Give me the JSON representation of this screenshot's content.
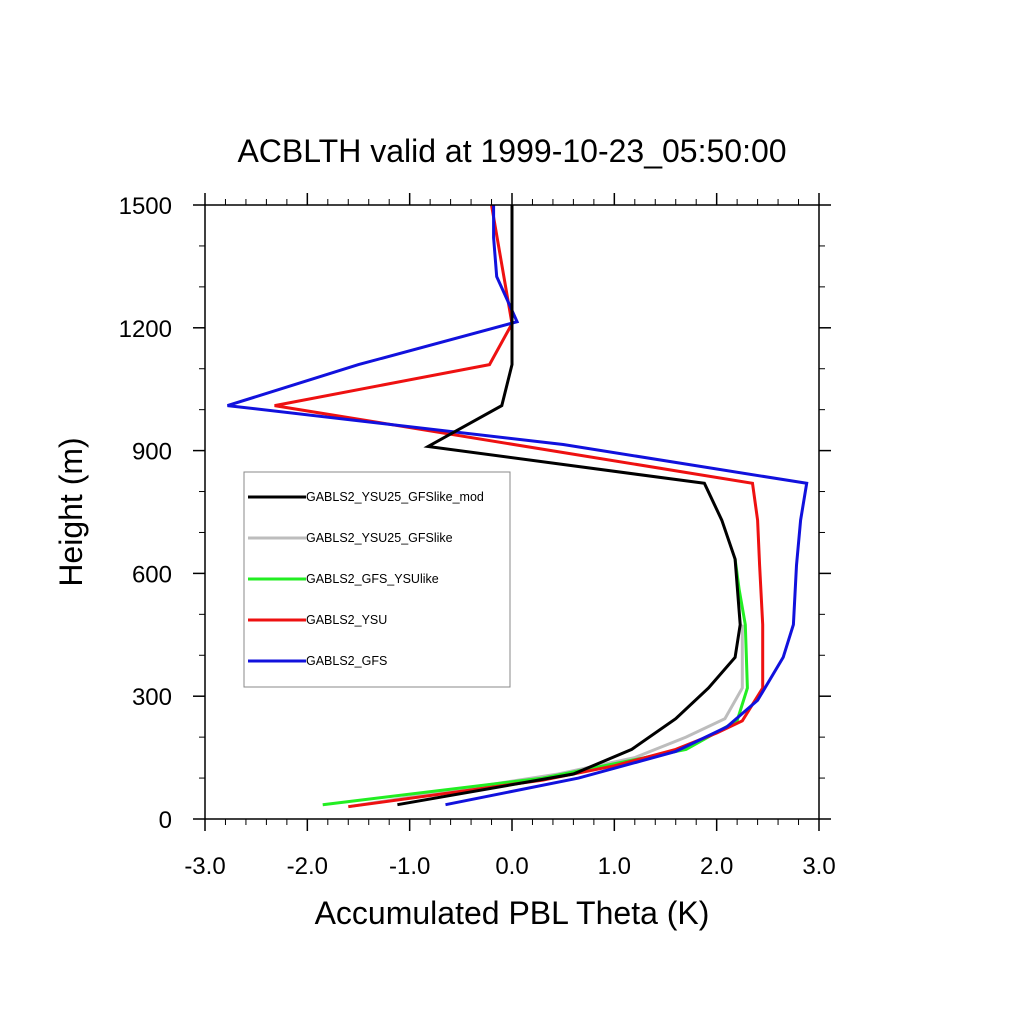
{
  "chart_data": {
    "type": "line",
    "title": "ACBLTH valid at 1999-10-23_05:50:00",
    "xlabel": "Accumulated PBL Theta (K)",
    "ylabel": "Height (m)",
    "xlim": [
      -3.0,
      3.0
    ],
    "ylim": [
      0,
      1500
    ],
    "x_ticks": [
      -3.0,
      -2.0,
      -1.0,
      0.0,
      1.0,
      2.0,
      3.0
    ],
    "x_tick_labels": [
      "-3.0",
      "-2.0",
      "-1.0",
      "0.0",
      "1.0",
      "2.0",
      "3.0"
    ],
    "y_ticks": [
      0,
      300,
      600,
      900,
      1200,
      1500
    ],
    "y_tick_labels": [
      "0",
      "300",
      "600",
      "900",
      "1200",
      "1500"
    ],
    "x_minor_step": 0.2,
    "y_minor_step": 100,
    "grid": false,
    "legend_position": "middle-left",
    "series": [
      {
        "name": "GABLS2_YSU25_GFSlike_mod",
        "color": "#000000",
        "points": [
          [
            -1.12,
            35
          ],
          [
            0.6,
            110
          ],
          [
            1.17,
            170
          ],
          [
            1.6,
            245
          ],
          [
            1.92,
            320
          ],
          [
            2.18,
            395
          ],
          [
            2.23,
            475
          ],
          [
            2.18,
            635
          ],
          [
            2.05,
            730
          ],
          [
            1.88,
            820
          ],
          [
            -0.82,
            910
          ],
          [
            -0.1,
            1010
          ],
          [
            0.0,
            1110
          ],
          [
            0.0,
            1210
          ],
          [
            0.0,
            1500
          ]
        ]
      },
      {
        "name": "GABLS2_YSU25_GFSlike",
        "color": "#bdbdbd",
        "points": [
          [
            -1.6,
            30
          ],
          [
            0.45,
            110
          ],
          [
            1.2,
            150
          ],
          [
            1.7,
            200
          ],
          [
            2.08,
            245
          ],
          [
            2.25,
            320
          ],
          [
            2.25,
            475
          ]
        ]
      },
      {
        "name": "GABLS2_GFS_YSUlike",
        "color": "#22ee22",
        "points": [
          [
            -1.85,
            35
          ],
          [
            0.3,
            100
          ],
          [
            1.1,
            140
          ],
          [
            1.7,
            170
          ],
          [
            2.2,
            240
          ],
          [
            2.3,
            320
          ],
          [
            2.28,
            475
          ],
          [
            2.22,
            560
          ],
          [
            2.18,
            635
          ]
        ]
      },
      {
        "name": "GABLS2_YSU",
        "color": "#ee1111",
        "points": [
          [
            -1.6,
            30
          ],
          [
            0.3,
            95
          ],
          [
            1.0,
            130
          ],
          [
            1.6,
            170
          ],
          [
            2.0,
            210
          ],
          [
            2.25,
            240
          ],
          [
            2.45,
            320
          ],
          [
            2.45,
            475
          ],
          [
            2.42,
            620
          ],
          [
            2.4,
            730
          ],
          [
            2.35,
            820
          ],
          [
            -2.32,
            1010
          ],
          [
            -0.22,
            1110
          ],
          [
            0.0,
            1210
          ],
          [
            -0.2,
            1500
          ]
        ]
      },
      {
        "name": "GABLS2_GFS",
        "color": "#1111dd",
        "points": [
          [
            -0.65,
            35
          ],
          [
            0.65,
            100
          ],
          [
            1.6,
            165
          ],
          [
            2.1,
            225
          ],
          [
            2.4,
            290
          ],
          [
            2.65,
            395
          ],
          [
            2.75,
            475
          ],
          [
            2.78,
            620
          ],
          [
            2.82,
            730
          ],
          [
            2.88,
            820
          ],
          [
            0.5,
            915
          ],
          [
            -2.78,
            1010
          ],
          [
            -1.5,
            1110
          ],
          [
            0.05,
            1215
          ],
          [
            -0.15,
            1325
          ],
          [
            -0.18,
            1420
          ],
          [
            -0.18,
            1500
          ]
        ]
      }
    ]
  }
}
